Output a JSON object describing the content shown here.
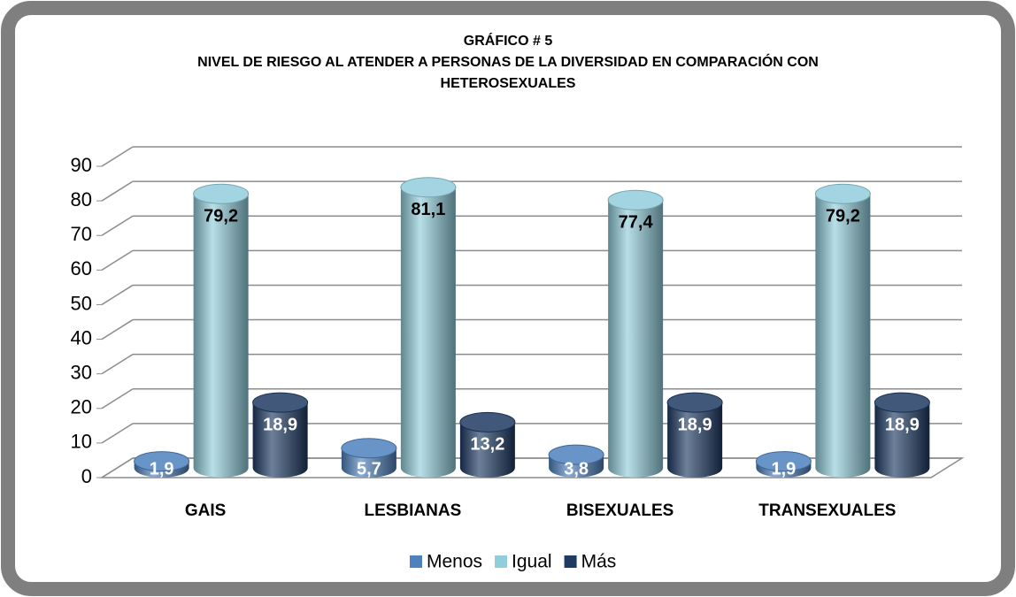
{
  "chart_data": {
    "type": "bar3d",
    "title": [
      "GRÁFICO # 5",
      "NIVEL DE RIESGO AL ATENDER A PERSONAS DE LA DIVERSIDAD EN COMPARACIÓN CON",
      "HETEROSEXUALES"
    ],
    "categories": [
      "GAIS",
      "LESBIANAS",
      "BISEXUALES",
      "TRANSEXUALES"
    ],
    "series": [
      {
        "name": "Menos",
        "color": "#4f81bd",
        "values": [
          1.9,
          5.7,
          3.8,
          1.9
        ],
        "value_labels": [
          "1,9",
          "5,7",
          "3,8",
          "1,9"
        ]
      },
      {
        "name": "Igual",
        "color": "#92cddc",
        "values": [
          79.2,
          81.1,
          77.4,
          79.2
        ],
        "value_labels": [
          "79,2",
          "81,1",
          "77,4",
          "79,2"
        ]
      },
      {
        "name": "Más",
        "color": "#1f3b64",
        "values": [
          18.9,
          13.2,
          18.9,
          18.9
        ],
        "value_labels": [
          "18,9",
          "13,2",
          "18,9",
          "18,9"
        ]
      }
    ],
    "ylim": [
      0,
      90
    ],
    "yticks": [
      0,
      10,
      20,
      30,
      40,
      50,
      60,
      70,
      80,
      90
    ],
    "grid": true,
    "legend": "bottom"
  }
}
